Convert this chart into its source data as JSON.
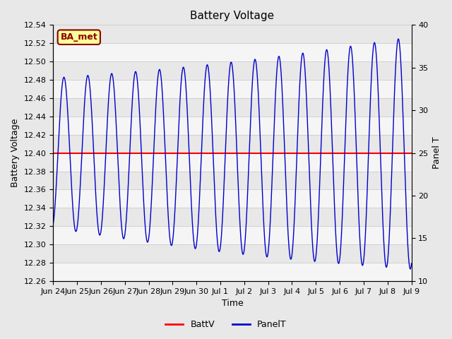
{
  "title": "Battery Voltage",
  "xlabel": "Time",
  "ylabel_left": "Battery Voltage",
  "ylabel_right": "Panel T",
  "ylim_left": [
    12.26,
    12.54
  ],
  "ylim_right": [
    10,
    40
  ],
  "yticks_left": [
    12.26,
    12.28,
    12.3,
    12.32,
    12.34,
    12.36,
    12.38,
    12.4,
    12.42,
    12.44,
    12.46,
    12.48,
    12.5,
    12.52,
    12.54
  ],
  "yticks_right": [
    10,
    15,
    20,
    25,
    30,
    35,
    40
  ],
  "xtick_labels": [
    "Jun 24",
    "Jun 25",
    "Jun 26",
    "Jun 27",
    "Jun 28",
    "Jun 29",
    "Jun 30",
    "Jul 1",
    "Jul 2",
    "Jul 3",
    "Jul 4",
    "Jul 5",
    "Jul 6",
    "Jul 7",
    "Jul 8",
    "Jul 9"
  ],
  "battv_value": 12.4,
  "battv_color": "#ff0000",
  "panelt_color": "#0000cc",
  "background_color": "#e8e8e8",
  "band_color": "#f5f5f5",
  "annotation_text": "BA_met",
  "annotation_bg": "#ffff99",
  "annotation_border": "#8B0000",
  "legend_entries": [
    "BattV",
    "PanelT"
  ],
  "title_fontsize": 11,
  "label_fontsize": 9,
  "tick_fontsize": 8
}
